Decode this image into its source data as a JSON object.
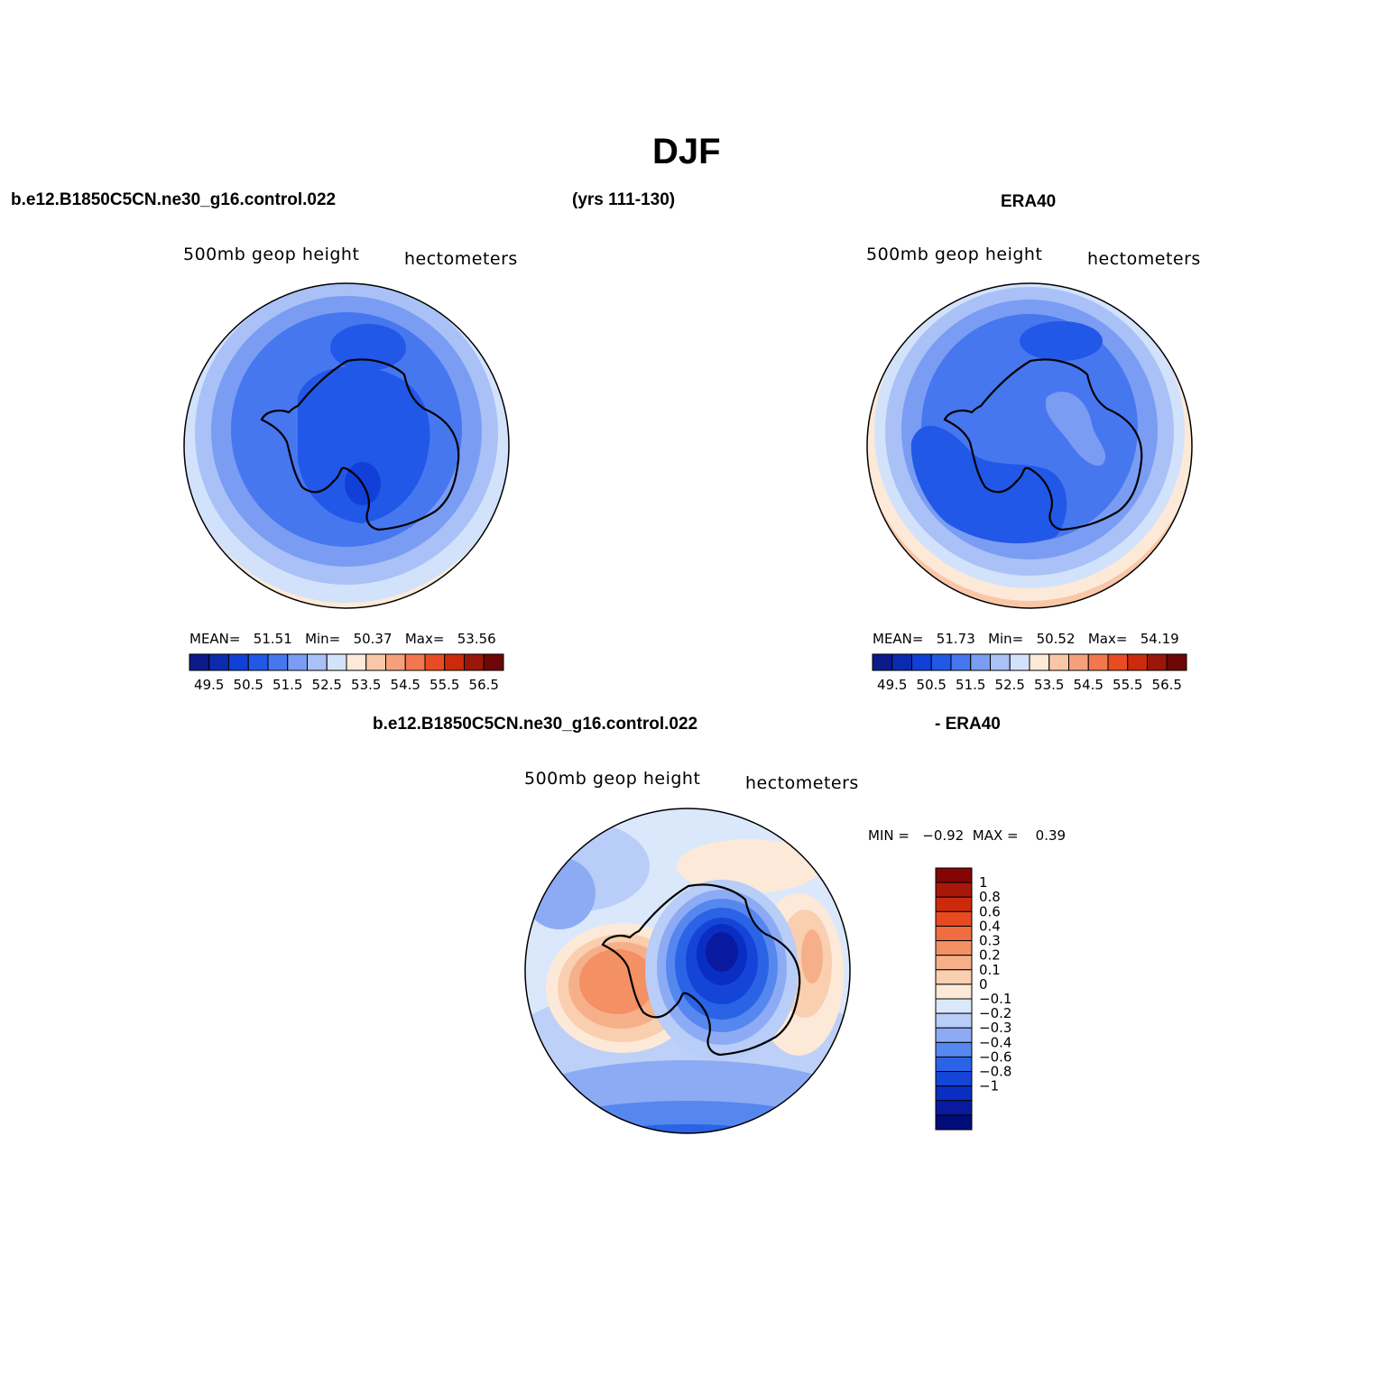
{
  "title": "DJF",
  "header": {
    "case": "b.e12.B1850C5CN.ne30_g16.control.022",
    "years": "(yrs 111-130)",
    "obs": "ERA40"
  },
  "panels": [
    {
      "id": "model",
      "var_label": "500mb  geop  height",
      "units": "hectometers",
      "stats": {
        "mean_label": "MEAN=",
        "mean": "51.51",
        "min_label": "Min=",
        "min": "50.37",
        "max_label": "Max=",
        "max": "53.56"
      }
    },
    {
      "id": "obs",
      "var_label": "500mb  geop  height",
      "units": "hectometers",
      "stats": {
        "mean_label": "MEAN=",
        "mean": "51.73",
        "min_label": "Min=",
        "min": "50.52",
        "max_label": "Max=",
        "max": "54.19"
      }
    },
    {
      "id": "diff",
      "case_label": "b.e12.B1850C5CN.ne30_g16.control.022",
      "minus_label": "- ERA40",
      "var_label": "500mb  geop  height",
      "units": "hectometers",
      "stats": {
        "min_label": "MIN =",
        "min": "−0.92",
        "max_label": "MAX =",
        "max": "0.39"
      }
    }
  ],
  "colorbar_top": {
    "colors": [
      "#0c1a8a",
      "#0a2bb0",
      "#1040d8",
      "#2158e8",
      "#4777ef",
      "#7a9df3",
      "#a9c1f7",
      "#d3e2fb",
      "#fde9d8",
      "#f9c7a8",
      "#f5a07a",
      "#f2774f",
      "#e94b22",
      "#cc2a0c",
      "#9a1608",
      "#6e0707"
    ],
    "ticks": [
      "49.5",
      "50.5",
      "51.5",
      "52.5",
      "53.5",
      "54.5",
      "55.5",
      "56.5"
    ]
  },
  "colorbar_diff": {
    "colors": [
      "#000c78",
      "#0a1aa0",
      "#0b2ec2",
      "#1545d8",
      "#2a63e6",
      "#5587ef",
      "#8dabf4",
      "#b8cdf7",
      "#dbe8fb",
      "#fde9d8",
      "#f9cfb0",
      "#f6b089",
      "#f39064",
      "#ef6d40",
      "#e84a20",
      "#cc2a0c",
      "#a8180a",
      "#850505"
    ],
    "ticks": [
      "1",
      "0.8",
      "0.6",
      "0.4",
      "0.3",
      "0.2",
      "0.1",
      "0",
      "−0.1",
      "−0.2",
      "−0.3",
      "−0.4",
      "−0.6",
      "−0.8",
      "−1"
    ]
  }
}
